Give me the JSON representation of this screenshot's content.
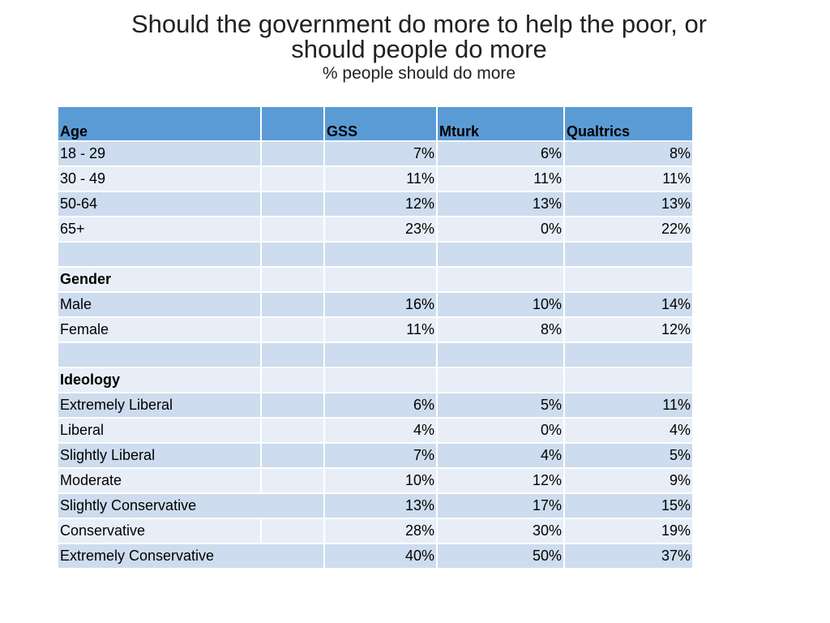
{
  "slide": {
    "title_line1": "Should the government do more to help the poor, or",
    "title_line2": "should people do more",
    "subtitle": "% people should do more"
  },
  "table": {
    "headers": [
      "Age",
      "",
      "GSS",
      "Mturk",
      "Qualtrics"
    ],
    "rows": [
      {
        "label": "18 - 29",
        "gss": "7%",
        "mturk": "6%",
        "qualtrics": "8%"
      },
      {
        "label": "30 - 49",
        "gss": "11%",
        "mturk": "11%",
        "qualtrics": "11%"
      },
      {
        "label": "50-64",
        "gss": "12%",
        "mturk": "13%",
        "qualtrics": "13%"
      },
      {
        "label": "65+",
        "gss": "23%",
        "mturk": "0%",
        "qualtrics": "22%"
      },
      {
        "label": "",
        "gss": "",
        "mturk": "",
        "qualtrics": ""
      },
      {
        "label": "Gender",
        "gss": "",
        "mturk": "",
        "qualtrics": "",
        "section": true
      },
      {
        "label": "Male",
        "gss": "16%",
        "mturk": "10%",
        "qualtrics": "14%"
      },
      {
        "label": "Female",
        "gss": "11%",
        "mturk": "8%",
        "qualtrics": "12%"
      },
      {
        "label": "",
        "gss": "",
        "mturk": "",
        "qualtrics": ""
      },
      {
        "label": "Ideology",
        "gss": "",
        "mturk": "",
        "qualtrics": "",
        "section": true
      },
      {
        "label": "Extremely Liberal",
        "gss": "6%",
        "mturk": "5%",
        "qualtrics": "11%"
      },
      {
        "label": "Liberal",
        "gss": "4%",
        "mturk": "0%",
        "qualtrics": "4%"
      },
      {
        "label": "Slightly Liberal",
        "gss": "7%",
        "mturk": "4%",
        "qualtrics": "5%"
      },
      {
        "label": "Moderate",
        "gss": "10%",
        "mturk": "12%",
        "qualtrics": "9%"
      },
      {
        "label": "Slightly Conservative",
        "gss": "13%",
        "mturk": "17%",
        "qualtrics": "15%",
        "merged": true
      },
      {
        "label": "Conservative",
        "gss": "28%",
        "mturk": "30%",
        "qualtrics": "19%"
      },
      {
        "label": "Extremely Conservative",
        "gss": "40%",
        "mturk": "50%",
        "qualtrics": "37%",
        "merged": true
      }
    ]
  },
  "colors": {
    "header_fill": "#5b9bd5",
    "row_dark": "#cddcee",
    "row_light": "#e8eef7"
  }
}
